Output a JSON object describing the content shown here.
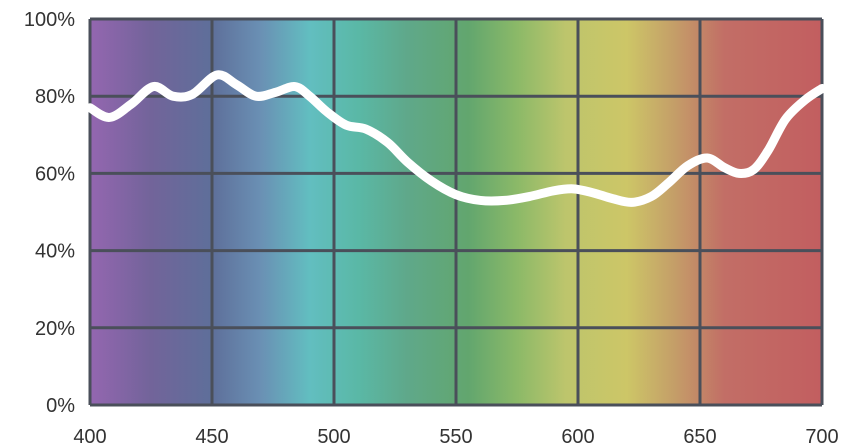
{
  "chart_data": {
    "type": "line",
    "title": "",
    "xlabel": "",
    "ylabel": "",
    "xlim": [
      400,
      700
    ],
    "ylim": [
      0,
      100
    ],
    "grid": true,
    "legend": "none",
    "x_ticks": [
      "400",
      "450",
      "500",
      "550",
      "600",
      "650",
      "700"
    ],
    "y_ticks": [
      "0%",
      "20%",
      "40%",
      "60%",
      "80%",
      "100%"
    ],
    "series": [
      {
        "color": "#ffffff",
        "x": [
          400,
          408,
          417,
          426,
          434,
          442,
          452,
          460,
          468,
          476,
          484,
          490,
          497,
          505,
          513,
          522,
          530,
          540,
          550,
          560,
          570,
          580,
          590,
          598,
          606,
          614,
          622,
          630,
          637,
          645,
          653,
          660,
          666,
          672,
          678,
          685,
          693,
          700
        ],
        "y": [
          77,
          74.5,
          78,
          82.5,
          80,
          80.5,
          85.5,
          83,
          80,
          81,
          82.5,
          80,
          76,
          72.5,
          71.5,
          68,
          63,
          58,
          54.5,
          53,
          53,
          54,
          55.5,
          56,
          55,
          53.5,
          52.5,
          54,
          57.5,
          62,
          64,
          61.5,
          60,
          61,
          66,
          74,
          79,
          82
        ]
      }
    ],
    "background": {
      "spectrum_gradient": [
        {
          "x": 400,
          "color": "#9466b0"
        },
        {
          "x": 425,
          "color": "#72649a"
        },
        {
          "x": 450,
          "color": "#5e6f9a"
        },
        {
          "x": 470,
          "color": "#6a90b4"
        },
        {
          "x": 490,
          "color": "#62bec0"
        },
        {
          "x": 510,
          "color": "#5ab8a6"
        },
        {
          "x": 530,
          "color": "#5fa88a"
        },
        {
          "x": 555,
          "color": "#62a66e"
        },
        {
          "x": 575,
          "color": "#8bb968"
        },
        {
          "x": 595,
          "color": "#bdc56c"
        },
        {
          "x": 620,
          "color": "#cdc667"
        },
        {
          "x": 640,
          "color": "#c49d68"
        },
        {
          "x": 660,
          "color": "#c26e66"
        },
        {
          "x": 700,
          "color": "#c25e60"
        }
      ]
    }
  }
}
